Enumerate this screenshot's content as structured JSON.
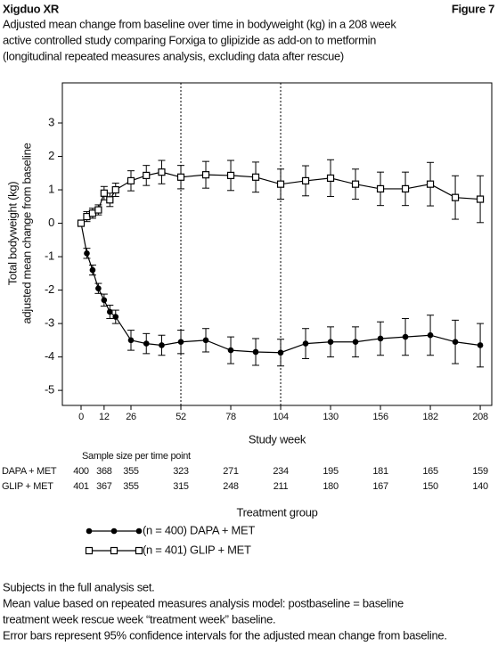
{
  "header": {
    "left": "Xigduo XR",
    "right": "Figure 7"
  },
  "chart_data": {
    "type": "line",
    "title": [
      "Adjusted mean change from baseline over time in bodyweight (kg) in a 208 week",
      "active controlled study comparing Forxiga to glipizide as add-on to metformin",
      "(longitudinal repeated measures analysis, excluding data after rescue)"
    ],
    "x_label": "Study week",
    "y_label": [
      "Total bodyweight (kg)",
      "adjusted mean change from baseline"
    ],
    "x": [
      0,
      3,
      6,
      9,
      12,
      15,
      18,
      26,
      34,
      42,
      52,
      65,
      78,
      91,
      104,
      117,
      130,
      143,
      156,
      169,
      182,
      195,
      208
    ],
    "xlim": [
      -9.75,
      214
    ],
    "ylim": [
      -5.45,
      4.2
    ],
    "xticks": [
      0,
      12,
      26,
      52,
      78,
      104,
      130,
      156,
      182,
      208
    ],
    "yticks": [
      3,
      2,
      1,
      0,
      -1,
      -2,
      -3,
      -4,
      -5
    ],
    "vlines": [
      52,
      104
    ],
    "legend_title": "Treatment group",
    "series": [
      {
        "name": "(n = 400) DAPA + MET",
        "color": "#000000",
        "marker": "circle",
        "values": [
          0,
          -0.9,
          -1.4,
          -1.95,
          -2.3,
          -2.65,
          -2.8,
          -3.5,
          -3.6,
          -3.65,
          -3.55,
          -3.5,
          -3.8,
          -3.85,
          -3.87,
          -3.6,
          -3.55,
          -3.55,
          -3.45,
          -3.4,
          -3.35,
          -3.55,
          -3.65
        ],
        "errors": [
          0,
          0.15,
          0.15,
          0.15,
          0.18,
          0.2,
          0.2,
          0.3,
          0.3,
          0.3,
          0.35,
          0.35,
          0.4,
          0.4,
          0.4,
          0.45,
          0.45,
          0.45,
          0.5,
          0.55,
          0.6,
          0.65,
          0.65
        ]
      },
      {
        "name": "(n = 401) GLIP + MET",
        "color": "#000000",
        "marker": "square",
        "values": [
          0,
          0.2,
          0.3,
          0.4,
          0.9,
          0.7,
          1.0,
          1.27,
          1.43,
          1.53,
          1.38,
          1.45,
          1.43,
          1.38,
          1.17,
          1.27,
          1.35,
          1.17,
          1.03,
          1.03,
          1.17,
          0.77,
          0.72
        ],
        "errors": [
          0,
          0.15,
          0.15,
          0.15,
          0.2,
          0.2,
          0.2,
          0.3,
          0.3,
          0.35,
          0.35,
          0.4,
          0.45,
          0.45,
          0.45,
          0.45,
          0.55,
          0.45,
          0.5,
          0.5,
          0.65,
          0.65,
          0.7
        ]
      }
    ],
    "sample_size": {
      "title": "Sample size per time point",
      "rows": [
        {
          "name": "DAPA + MET",
          "values": [
            400,
            368,
            355,
            323,
            271,
            234,
            195,
            181,
            165,
            159
          ]
        },
        {
          "name": "GLIP + MET",
          "values": [
            401,
            367,
            355,
            315,
            248,
            211,
            180,
            167,
            150,
            140
          ]
        }
      ]
    }
  },
  "notes": [
    "Subjects in the full analysis set.",
    "Mean value based on repeated measures analysis model: postbaseline = baseline",
    "treatment week rescue week “treatment week” baseline.",
    "Error bars represent 95% confidence intervals for the adjusted mean change from baseline."
  ]
}
